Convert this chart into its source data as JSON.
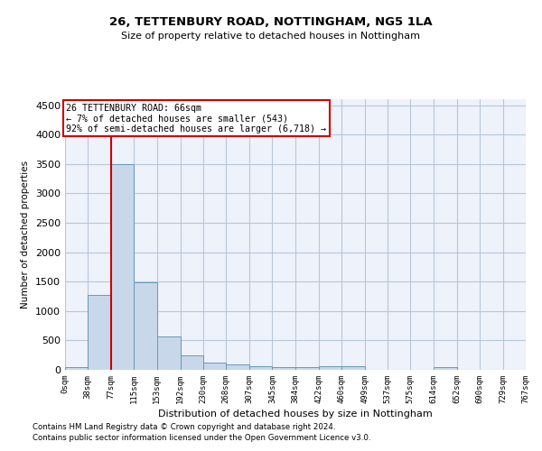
{
  "title": "26, TETTENBURY ROAD, NOTTINGHAM, NG5 1LA",
  "subtitle": "Size of property relative to detached houses in Nottingham",
  "xlabel": "Distribution of detached houses by size in Nottingham",
  "ylabel": "Number of detached properties",
  "bar_color": "#c8d8ea",
  "bar_edge_color": "#6699bb",
  "background_color": "#eef2fb",
  "grid_color": "#b8c8d8",
  "annotation_box_color": "#cc0000",
  "annotation_text": "26 TETTENBURY ROAD: 66sqm\n← 7% of detached houses are smaller (543)\n92% of semi-detached houses are larger (6,718) →",
  "vline_x": 77,
  "vline_color": "#cc0000",
  "bin_edges": [
    0,
    38,
    77,
    115,
    153,
    192,
    230,
    268,
    307,
    345,
    384,
    422,
    460,
    499,
    537,
    575,
    614,
    652,
    690,
    729,
    767
  ],
  "bar_heights": [
    40,
    1270,
    3500,
    1480,
    575,
    250,
    130,
    90,
    55,
    45,
    50,
    55,
    55,
    0,
    0,
    0,
    50,
    0,
    0,
    0
  ],
  "ylim": [
    0,
    4600
  ],
  "yticks": [
    0,
    500,
    1000,
    1500,
    2000,
    2500,
    3000,
    3500,
    4000,
    4500
  ],
  "footnote1": "Contains HM Land Registry data © Crown copyright and database right 2024.",
  "footnote2": "Contains public sector information licensed under the Open Government Licence v3.0.",
  "tick_labels": [
    "0sqm",
    "38sqm",
    "77sqm",
    "115sqm",
    "153sqm",
    "192sqm",
    "230sqm",
    "268sqm",
    "307sqm",
    "345sqm",
    "384sqm",
    "422sqm",
    "460sqm",
    "499sqm",
    "537sqm",
    "575sqm",
    "614sqm",
    "652sqm",
    "690sqm",
    "729sqm",
    "767sqm"
  ]
}
